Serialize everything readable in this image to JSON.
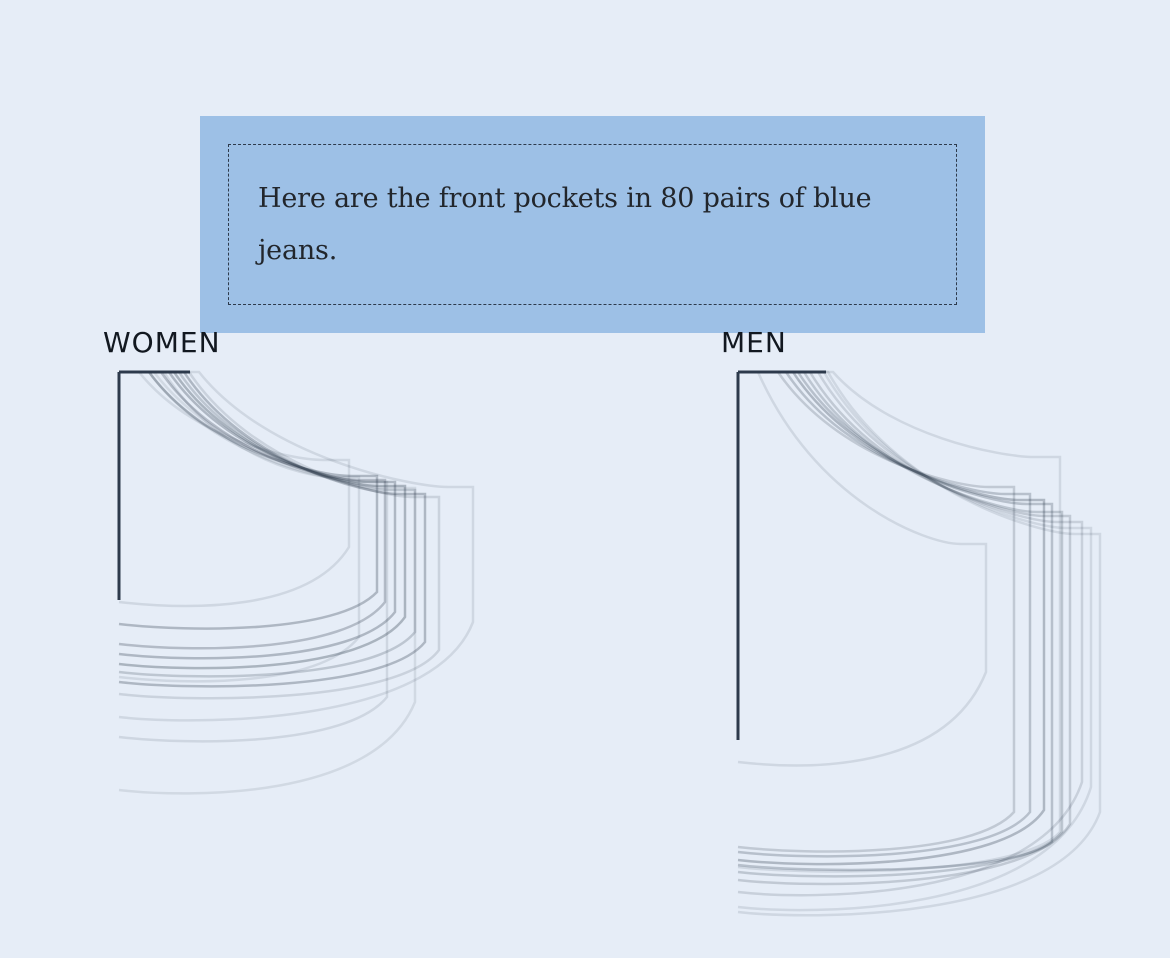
{
  "intro": {
    "text": "Here are the front pockets in 80 pairs of blue jeans."
  },
  "groups": {
    "women": {
      "label": "WOMEN"
    },
    "men": {
      "label": "MEN"
    }
  },
  "colors": {
    "background": "#e6edf7",
    "card": "#9dc0e6",
    "pocket_stroke": "#2d3a4c"
  }
}
